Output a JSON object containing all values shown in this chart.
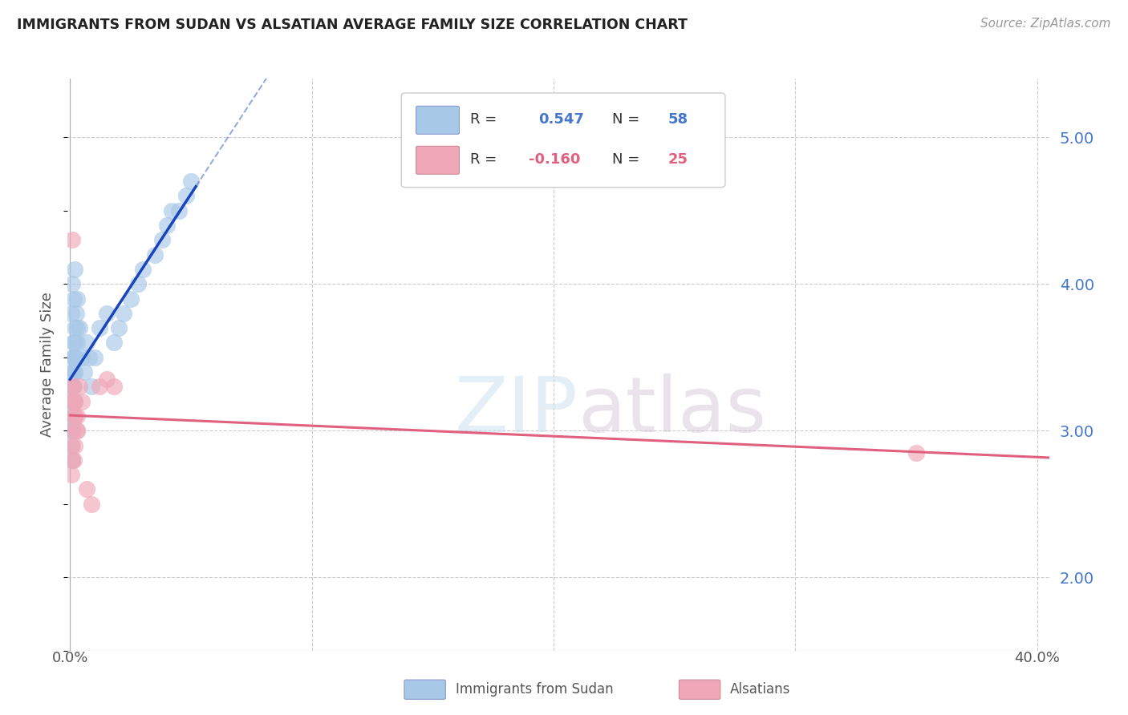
{
  "title": "IMMIGRANTS FROM SUDAN VS ALSATIAN AVERAGE FAMILY SIZE CORRELATION CHART",
  "source": "Source: ZipAtlas.com",
  "ylabel": "Average Family Size",
  "right_yticks": [
    2.0,
    3.0,
    4.0,
    5.0
  ],
  "ymin": 1.5,
  "ymax": 5.4,
  "xmin": -0.001,
  "xmax": 0.405,
  "blue_R": 0.547,
  "blue_N": 58,
  "pink_R": -0.16,
  "pink_N": 25,
  "blue_color": "#a8c8e8",
  "pink_color": "#f0a8b8",
  "blue_line_color": "#1a44bb",
  "pink_line_color": "#e06080",
  "watermark_zip": "ZIP",
  "watermark_atlas": "atlas",
  "background_color": "#ffffff",
  "grid_color": "#cccccc",
  "blue_scatter_x": [
    0.0005,
    0.001,
    0.0015,
    0.002,
    0.0008,
    0.0012,
    0.0018,
    0.0025,
    0.0005,
    0.001,
    0.0015,
    0.002,
    0.0008,
    0.0012,
    0.0018,
    0.003,
    0.0005,
    0.001,
    0.0015,
    0.0008,
    0.0012,
    0.002,
    0.0025,
    0.003,
    0.0005,
    0.001,
    0.0015,
    0.002,
    0.0008,
    0.0012,
    0.0018,
    0.0005,
    0.001,
    0.0015,
    0.002,
    0.003,
    0.004,
    0.005,
    0.006,
    0.007,
    0.008,
    0.009,
    0.01,
    0.012,
    0.015,
    0.018,
    0.02,
    0.022,
    0.025,
    0.028,
    0.03,
    0.035,
    0.038,
    0.04,
    0.042,
    0.045,
    0.048,
    0.05
  ],
  "blue_scatter_y": [
    3.8,
    4.0,
    3.9,
    4.1,
    3.5,
    3.6,
    3.7,
    3.8,
    3.3,
    3.4,
    3.5,
    3.6,
    3.2,
    3.3,
    3.4,
    3.7,
    3.1,
    3.2,
    3.3,
    3.0,
    3.1,
    3.4,
    3.5,
    3.9,
    2.9,
    3.0,
    3.1,
    3.2,
    2.8,
    3.0,
    3.1,
    3.3,
    3.4,
    3.5,
    3.2,
    3.6,
    3.7,
    3.5,
    3.4,
    3.6,
    3.5,
    3.3,
    3.5,
    3.7,
    3.8,
    3.6,
    3.7,
    3.8,
    3.9,
    4.0,
    4.1,
    4.2,
    4.3,
    4.4,
    4.5,
    4.5,
    4.6,
    4.7
  ],
  "pink_scatter_x": [
    0.0005,
    0.001,
    0.0015,
    0.0008,
    0.0012,
    0.002,
    0.003,
    0.0005,
    0.001,
    0.0015,
    0.002,
    0.0008,
    0.003,
    0.0005,
    0.001,
    0.002,
    0.003,
    0.004,
    0.005,
    0.007,
    0.009,
    0.012,
    0.015,
    0.35,
    0.018
  ],
  "pink_scatter_y": [
    3.3,
    3.2,
    3.1,
    4.3,
    3.3,
    3.2,
    3.1,
    3.0,
    2.9,
    2.8,
    3.1,
    3.2,
    3.0,
    2.7,
    2.8,
    2.9,
    3.0,
    3.3,
    3.2,
    2.6,
    2.5,
    3.3,
    3.35,
    2.85,
    3.3
  ]
}
